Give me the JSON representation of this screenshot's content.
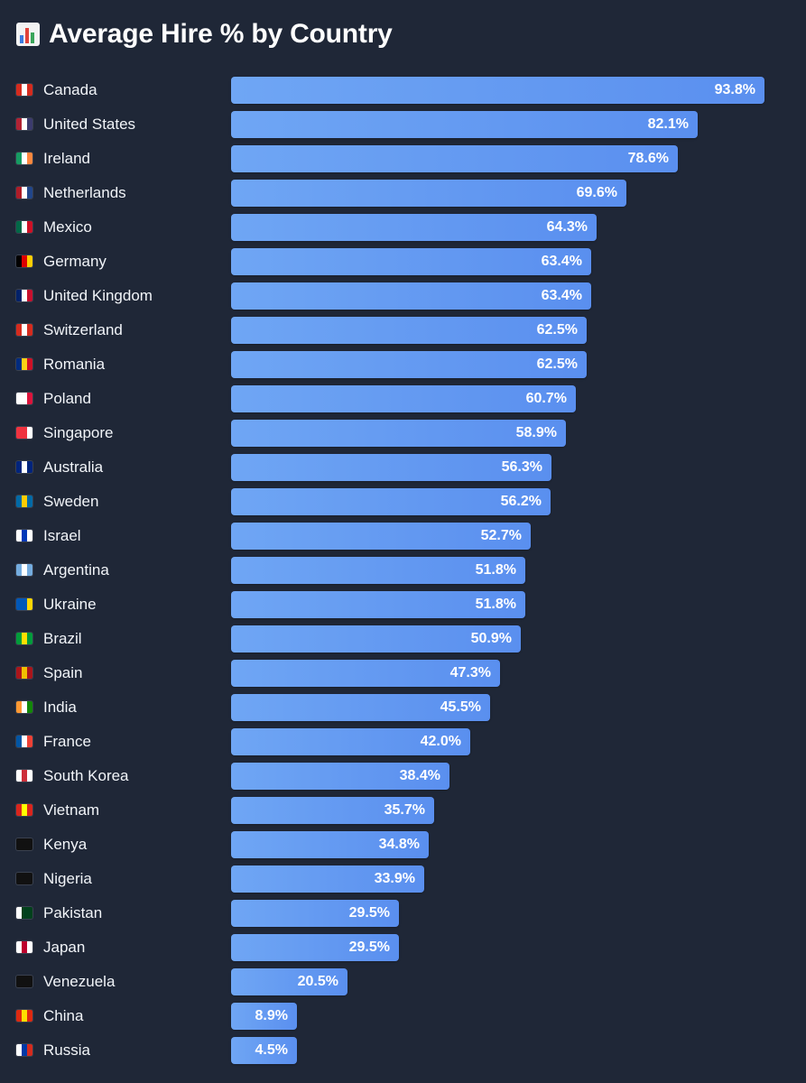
{
  "title": "Average Hire % by Country",
  "title_icon": "bar-chart-icon",
  "colors": {
    "background": "#1f2737",
    "bar_start": "#6fa6f4",
    "bar_end": "#5a8fef",
    "text": "#ffffff"
  },
  "chart_data": {
    "type": "bar",
    "orientation": "horizontal",
    "title": "Average Hire % by Country",
    "xlabel": "",
    "ylabel": "",
    "xlim": [
      0,
      100
    ],
    "value_suffix": "%",
    "categories": [
      "Canada",
      "United States",
      "Ireland",
      "Netherlands",
      "Mexico",
      "Germany",
      "United Kingdom",
      "Switzerland",
      "Romania",
      "Poland",
      "Singapore",
      "Australia",
      "Sweden",
      "Israel",
      "Argentina",
      "Ukraine",
      "Brazil",
      "Spain",
      "India",
      "France",
      "South Korea",
      "Vietnam",
      "Kenya",
      "Nigeria",
      "Pakistan",
      "Japan",
      "Venezuela",
      "China",
      "Russia"
    ],
    "values": [
      93.8,
      82.1,
      78.6,
      69.6,
      64.3,
      63.4,
      63.4,
      62.5,
      62.5,
      60.7,
      58.9,
      56.3,
      56.2,
      52.7,
      51.8,
      51.8,
      50.9,
      47.3,
      45.5,
      42.0,
      38.4,
      35.7,
      34.8,
      33.9,
      29.5,
      29.5,
      20.5,
      8.9,
      4.5
    ],
    "value_labels": [
      "93.8%",
      "82.1%",
      "78.6%",
      "69.6%",
      "64.3%",
      "63.4%",
      "63.4%",
      "62.5%",
      "62.5%",
      "60.7%",
      "58.9%",
      "56.3%",
      "56.2%",
      "52.7%",
      "51.8%",
      "51.8%",
      "50.9%",
      "47.3%",
      "45.5%",
      "42.0%",
      "38.4%",
      "35.7%",
      "34.8%",
      "33.9%",
      "29.5%",
      "29.5%",
      "20.5%",
      "8.9%",
      "4.5%"
    ],
    "flag_icons": [
      "canada-flag-icon",
      "united-states-flag-icon",
      "ireland-flag-icon",
      "netherlands-flag-icon",
      "mexico-flag-icon",
      "germany-flag-icon",
      "united-kingdom-flag-icon",
      "switzerland-flag-icon",
      "romania-flag-icon",
      "poland-flag-icon",
      "singapore-flag-icon",
      "australia-flag-icon",
      "sweden-flag-icon",
      "israel-flag-icon",
      "argentina-flag-icon",
      "ukraine-flag-icon",
      "brazil-flag-icon",
      "spain-flag-icon",
      "india-flag-icon",
      "france-flag-icon",
      "south-korea-flag-icon",
      "vietnam-flag-icon",
      "kenya-flag-icon",
      "nigeria-flag-icon",
      "pakistan-flag-icon",
      "japan-flag-icon",
      "venezuela-flag-icon",
      "china-flag-icon",
      "russia-flag-icon"
    ],
    "flag_colors": [
      [
        "#d52b1e",
        "#ffffff",
        "#d52b1e"
      ],
      [
        "#b22234",
        "#ffffff",
        "#3c3b6e"
      ],
      [
        "#169b62",
        "#ffffff",
        "#ff883e"
      ],
      [
        "#ae1c28",
        "#ffffff",
        "#21468b"
      ],
      [
        "#006847",
        "#ffffff",
        "#ce1126"
      ],
      [
        "#000000",
        "#dd0000",
        "#ffce00"
      ],
      [
        "#012169",
        "#ffffff",
        "#c8102e"
      ],
      [
        "#d52b1e",
        "#ffffff",
        "#d52b1e"
      ],
      [
        "#002b7f",
        "#fcd116",
        "#ce1126"
      ],
      [
        "#ffffff",
        "#ffffff",
        "#dc143c"
      ],
      [
        "#ef3340",
        "#ef3340",
        "#ffffff"
      ],
      [
        "#00247d",
        "#ffffff",
        "#00247d"
      ],
      [
        "#006aa7",
        "#fecc00",
        "#006aa7"
      ],
      [
        "#ffffff",
        "#0038b8",
        "#ffffff"
      ],
      [
        "#74acdf",
        "#ffffff",
        "#74acdf"
      ],
      [
        "#0057b7",
        "#0057b7",
        "#ffd700"
      ],
      [
        "#009c3b",
        "#ffdf00",
        "#009c3b"
      ],
      [
        "#aa151b",
        "#f1bf00",
        "#aa151b"
      ],
      [
        "#ff9933",
        "#ffffff",
        "#138808"
      ],
      [
        "#0055a4",
        "#ffffff",
        "#ef4135"
      ],
      [
        "#ffffff",
        "#cd2e3a",
        "#ffffff"
      ],
      [
        "#da251d",
        "#ffff00",
        "#da251d"
      ],
      [
        "#111111",
        "#111111",
        "#111111"
      ],
      [
        "#111111",
        "#111111",
        "#111111"
      ],
      [
        "#ffffff",
        "#01411c",
        "#01411c"
      ],
      [
        "#ffffff",
        "#bc002d",
        "#ffffff"
      ],
      [
        "#111111",
        "#111111",
        "#111111"
      ],
      [
        "#de2910",
        "#ffde00",
        "#de2910"
      ],
      [
        "#ffffff",
        "#0039a6",
        "#d52b1e"
      ]
    ]
  }
}
